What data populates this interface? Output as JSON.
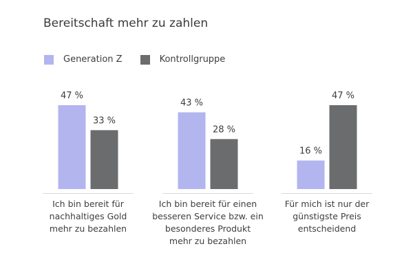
{
  "chart_data": {
    "type": "bar",
    "title": "Bereitschaft mehr zu zahlen",
    "xlabel": "",
    "ylabel": "",
    "ylim": [
      0,
      50
    ],
    "grid": false,
    "legend_position": "top-left",
    "value_suffix": " %",
    "categories": [
      "Ich bin bereit für nachhaltiges Gold mehr zu bezahlen",
      "Ich bin bereit für einen besseren Service bzw. ein besonderes Produkt mehr zu bezahlen",
      "Für mich ist nur der günstigste Preis entscheidend"
    ],
    "category_label_lines": [
      [
        "Ich bin bereit für",
        "nachhaltiges Gold",
        "mehr zu bezahlen"
      ],
      [
        "Ich bin bereit für einen",
        "besseren Service bzw. ein",
        "besonderes Produkt",
        "mehr zu bezahlen"
      ],
      [
        "Für mich ist nur der",
        "günstigste Preis",
        "entscheidend"
      ]
    ],
    "series": [
      {
        "name": "Generation Z",
        "color": "#b3b5ef",
        "values": [
          47,
          43,
          16
        ]
      },
      {
        "name": "Kontrollgruppe",
        "color": "#6b6c6e",
        "values": [
          33,
          28,
          47
        ]
      }
    ],
    "data_labels": [
      [
        "47 %",
        "43 %",
        "16 %"
      ],
      [
        "33 %",
        "28 %",
        "47 %"
      ]
    ]
  },
  "colors": {
    "axis_line": "#d9d9d9",
    "text": "#3d3d3d"
  }
}
